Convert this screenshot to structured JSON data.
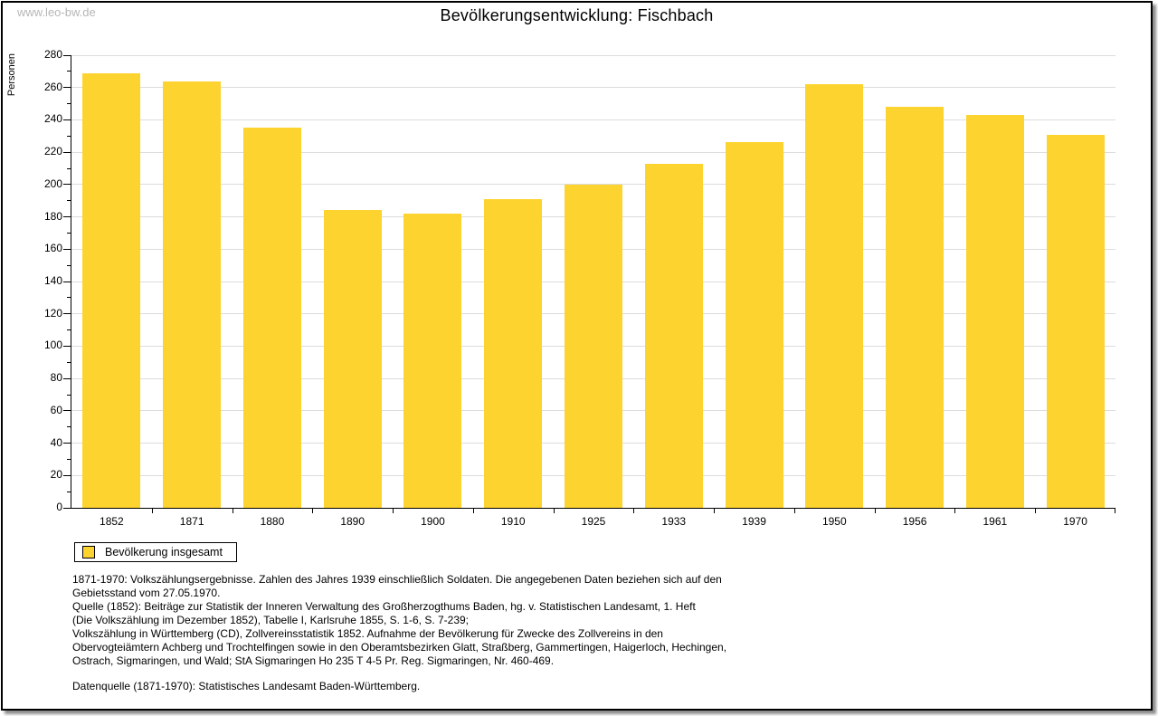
{
  "watermark": "www.leo-bw.de",
  "title": "Bevölkerungsentwicklung: Fischbach",
  "chart_data": {
    "type": "bar",
    "title": "Bevölkerungsentwicklung: Fischbach",
    "xlabel": "",
    "ylabel": "Personen",
    "categories": [
      "1852",
      "1871",
      "1880",
      "1890",
      "1900",
      "1910",
      "1925",
      "1933",
      "1939",
      "1950",
      "1956",
      "1961",
      "1970"
    ],
    "values": [
      269,
      264,
      235,
      184,
      182,
      191,
      200,
      213,
      226,
      262,
      248,
      243,
      231
    ],
    "series_name": "Bevölkerung insgesamt",
    "ylim": [
      0,
      280
    ],
    "ytick_step": 20,
    "yminor_step": 10,
    "grid": "horizontal-major",
    "legend_position": "bottom-left",
    "bar_color": "#FDD32F"
  },
  "legend": {
    "items": [
      {
        "label": "Bevölkerung insgesamt",
        "color": "#FDD32F"
      }
    ]
  },
  "footer": {
    "lines": [
      "1871-1970: Volkszählungsergebnisse. Zahlen des Jahres 1939 einschließlich Soldaten. Die angegebenen Daten beziehen sich auf den",
      "Gebietsstand vom 27.05.1970.",
      "Quelle (1852): Beiträge zur Statistik der Inneren Verwaltung des Großherzogthums Baden, hg. v. Statistischen Landesamt, 1. Heft",
      "(Die Volkszählung im Dezember 1852), Tabelle I, Karlsruhe 1855, S. 1-6, S. 7-239;",
      "Volkszählung in Württemberg (CD), Zollvereinsstatistik 1852. Aufnahme der Bevölkerung für Zwecke des Zollvereins in den",
      "Obervogteiämtern Achberg und Trochtelfingen sowie in den Oberamtsbezirken Glatt, Straßberg, Gammertingen, Haigerloch, Hechingen,",
      "Ostrach, Sigmaringen, und Wald; StA Sigmaringen Ho 235 T 4-5 Pr. Reg. Sigmaringen, Nr. 460-469."
    ],
    "datasource": "Datenquelle (1871-1970): Statistisches Landesamt Baden-Württemberg."
  },
  "colors": {
    "bar": "#FDD32F",
    "gridline": "#DCDCDC",
    "axis": "#000000",
    "watermark": "#B6B6B6",
    "page_border": "#000000"
  }
}
